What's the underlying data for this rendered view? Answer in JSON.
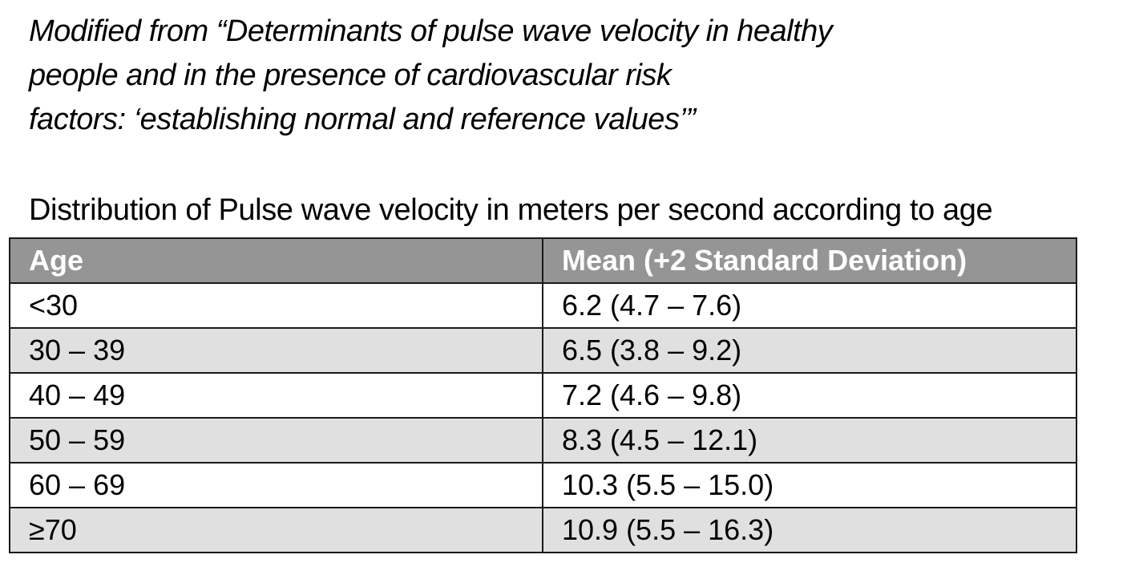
{
  "citation": {
    "lines": [
      "Modified from “Determinants of pulse wave velocity in healthy",
      "people and in the presence of cardiovascular risk",
      "factors: ‘establishing normal and reference values’”"
    ]
  },
  "caption": "Distribution of Pulse wave velocity in meters per second according to age",
  "table": {
    "headers": [
      "Age",
      "Mean (+2 Standard Deviation)"
    ],
    "rows": [
      {
        "age": "<30",
        "value": "6.2 (4.7 – 7.6)"
      },
      {
        "age": "30 – 39",
        "value": "6.5 (3.8 – 9.2)"
      },
      {
        "age": "40 – 49",
        "value": "7.2 (4.6 – 9.8)"
      },
      {
        "age": "50 – 59",
        "value": "8.3 (4.5 – 12.1)"
      },
      {
        "age": "60 – 69",
        "value": "10.3 (5.5 – 15.0)"
      },
      {
        "age": "≥70",
        "value": "10.9 (5.5 – 16.3)"
      }
    ]
  },
  "colors": {
    "header_bg": "#959595",
    "header_text": "#ffffff",
    "row_alt_bg": "#e0e0e0",
    "border": "#1a1a1a"
  }
}
